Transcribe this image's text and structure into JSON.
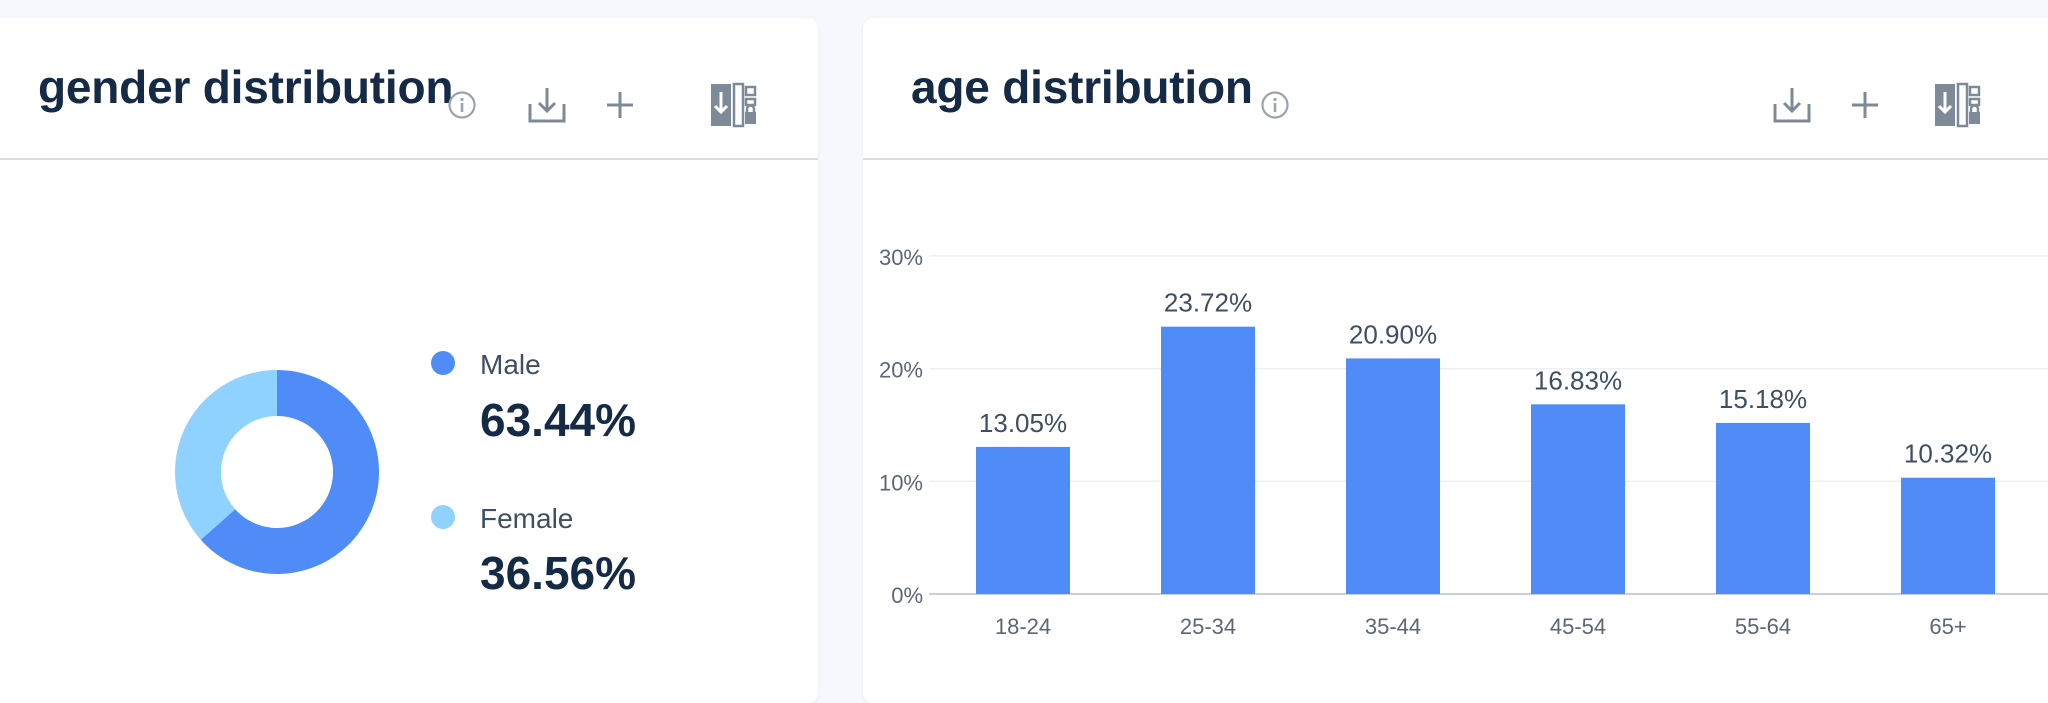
{
  "colors": {
    "primary": "#4f8cf7",
    "light": "#8fd1ff",
    "title": "#142a45",
    "icon": "#7e8a98"
  },
  "gender_card": {
    "title": "gender distribution",
    "icons": [
      "info-icon",
      "download-icon",
      "add-icon",
      "export-icon"
    ]
  },
  "age_card": {
    "title": "age distribution",
    "icons": [
      "info-icon",
      "download-icon",
      "add-icon",
      "export-icon"
    ]
  },
  "chart_data": [
    {
      "type": "pie",
      "donut": true,
      "title": "gender distribution",
      "labels": [
        "Male",
        "Female"
      ],
      "values": [
        63.44,
        36.56
      ],
      "value_labels": [
        "63.44%",
        "36.56%"
      ],
      "colors": [
        "#4f8cf7",
        "#8fd1ff"
      ],
      "legend": "right"
    },
    {
      "type": "bar",
      "title": "age distribution",
      "categories": [
        "18-24",
        "25-34",
        "35-44",
        "45-54",
        "55-64",
        "65+"
      ],
      "values": [
        13.05,
        23.72,
        20.9,
        16.83,
        15.18,
        10.32
      ],
      "data_labels": [
        "13.05%",
        "23.72%",
        "20.90%",
        "16.83%",
        "15.18%",
        "10.32%"
      ],
      "yticks": [
        "0%",
        "10%",
        "20%",
        "30%"
      ],
      "ytick_values": [
        0,
        10,
        20,
        30
      ],
      "ylim": [
        0,
        30
      ],
      "grid": true,
      "color": "#4f8cf7"
    }
  ]
}
